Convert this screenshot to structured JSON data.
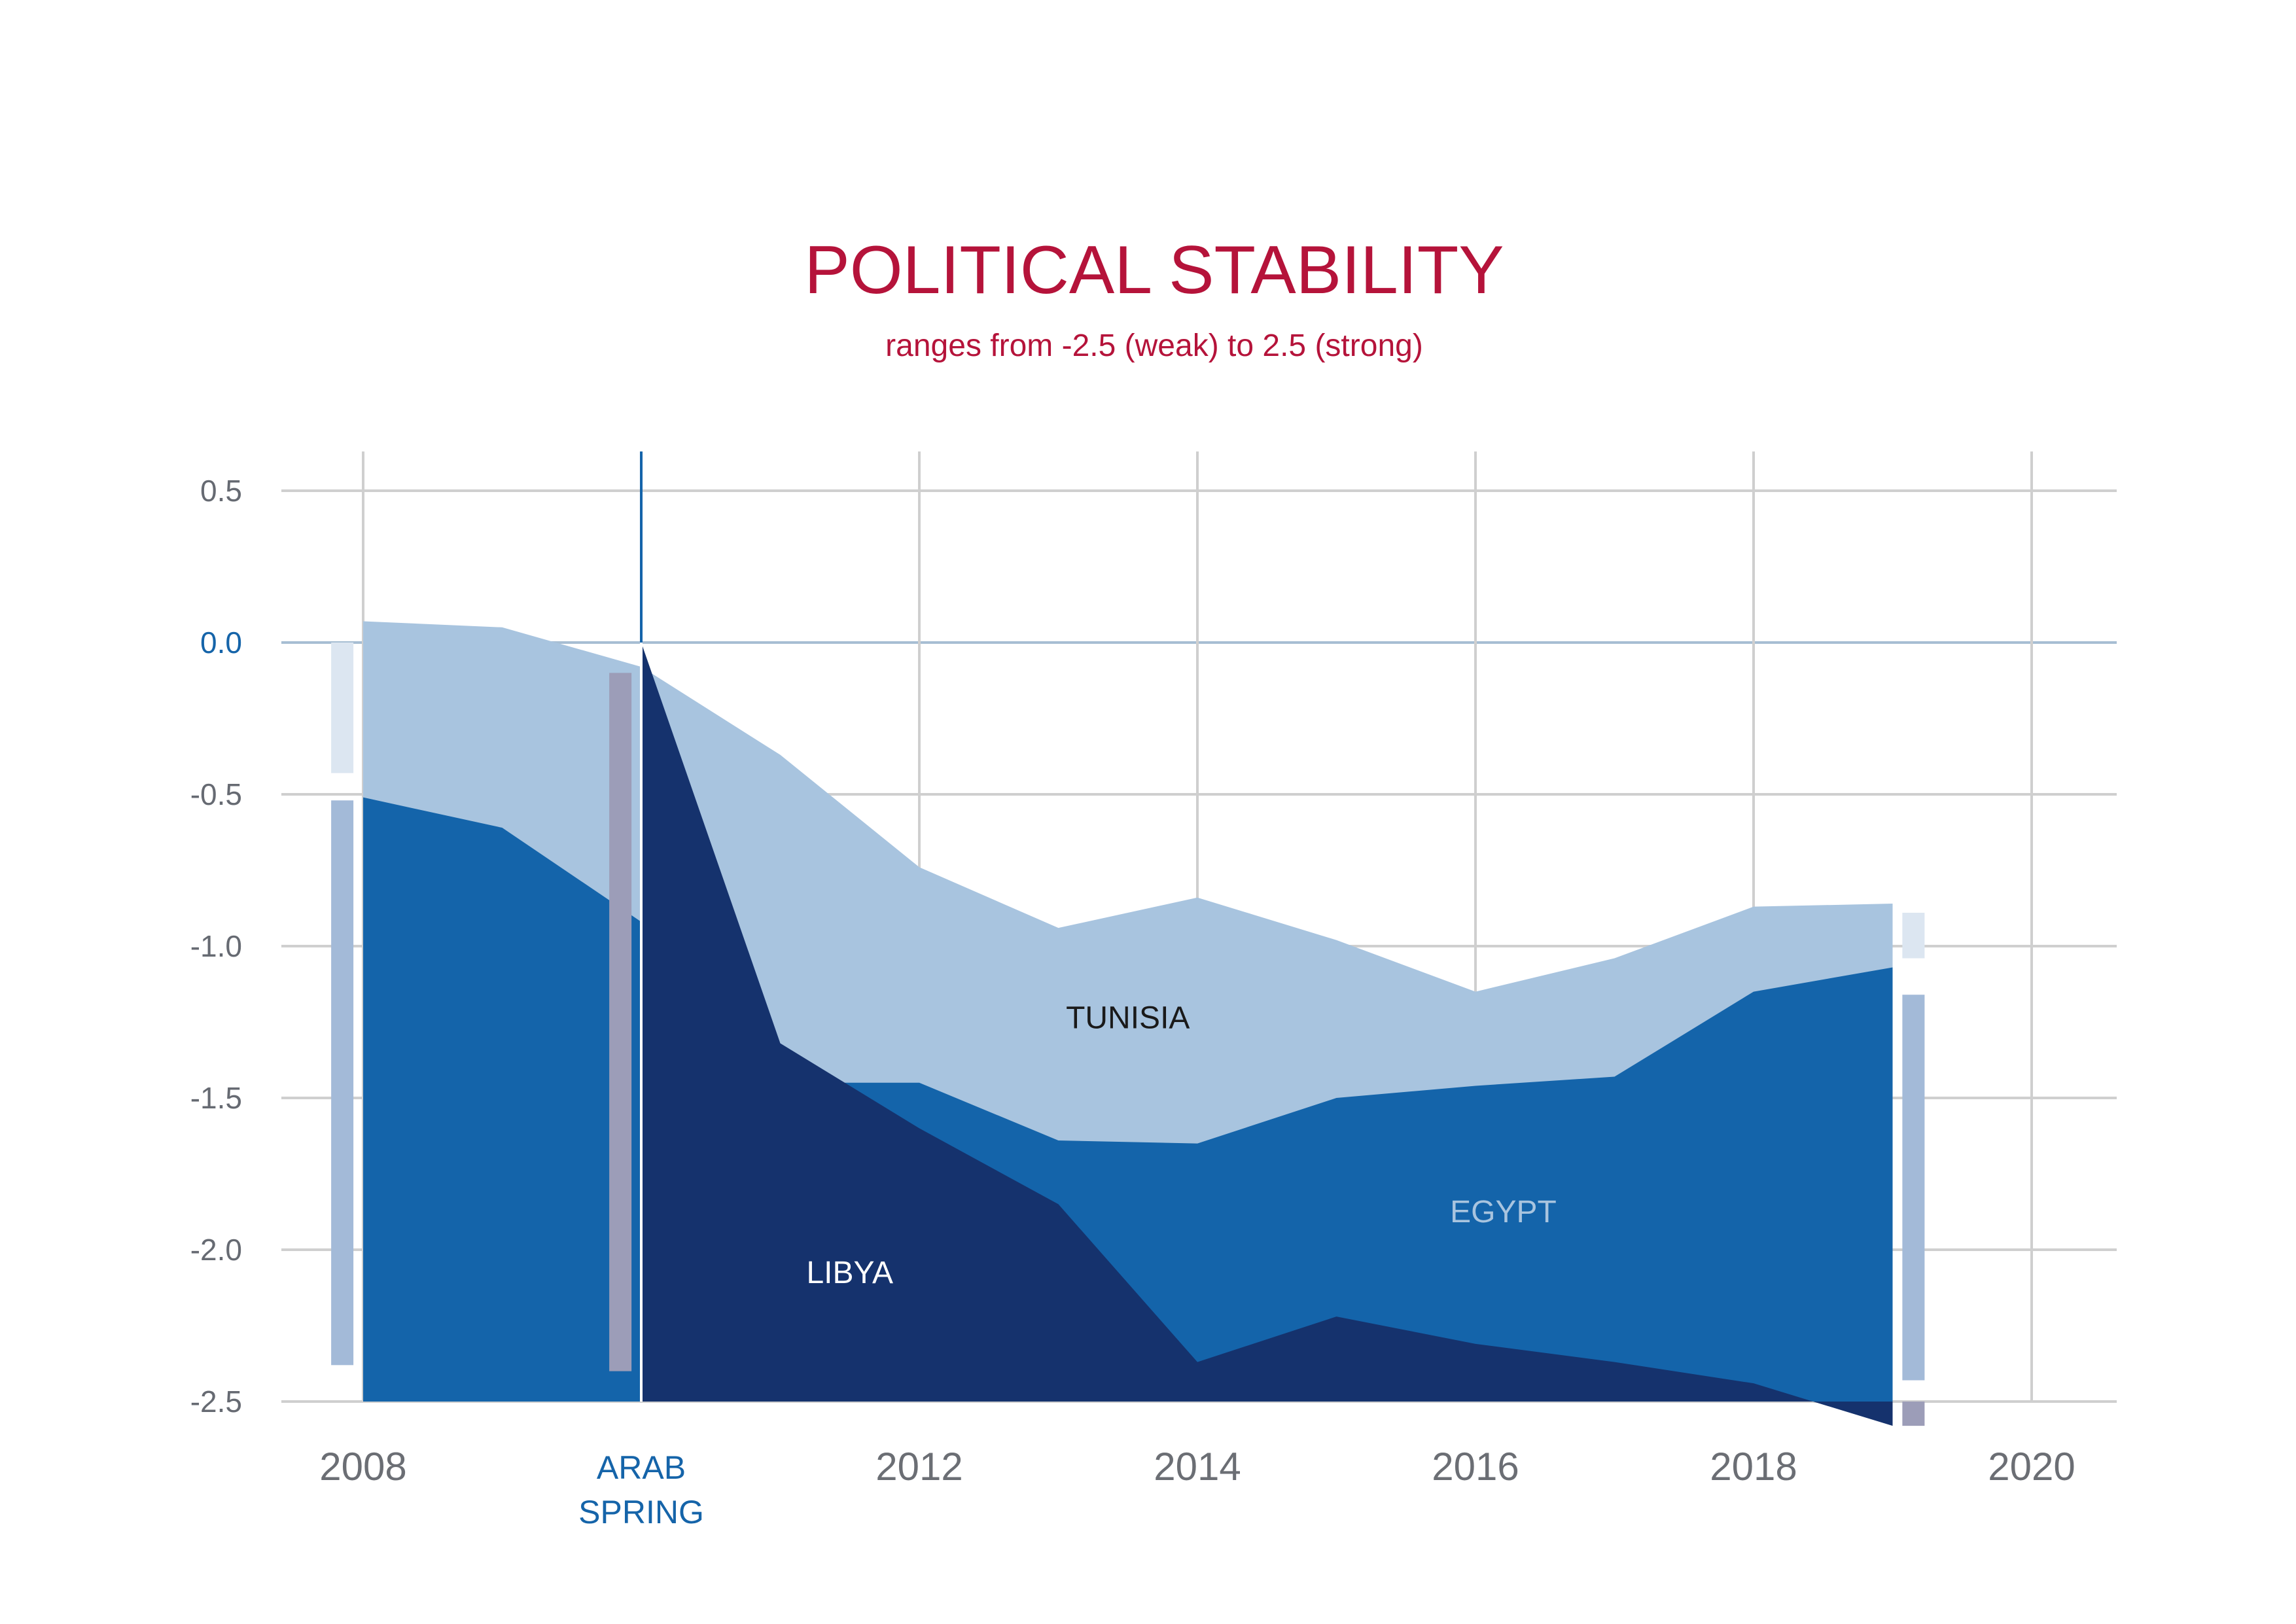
{
  "chart_data": {
    "type": "area",
    "title": "POLITICAL STABILITY",
    "subtitle": "ranges from -2.5 (weak) to 2.5 (strong)",
    "xlabel": "",
    "ylabel": "",
    "xlim": [
      2008,
      2020
    ],
    "ylim": [
      -2.5,
      0.5
    ],
    "y_ticks": [
      0.5,
      0.0,
      -0.5,
      -1.0,
      -1.5,
      -2.0,
      -2.5
    ],
    "y_tick_labels": [
      "0.5",
      "0.0",
      "-0.5",
      "-1.0",
      "-1.5",
      "-2.0",
      "-2.5"
    ],
    "x_ticks": [
      2008,
      2012,
      2014,
      2016,
      2018,
      2020
    ],
    "x_tick_labels": [
      "2008",
      "2012",
      "2014",
      "2016",
      "2018",
      "2020"
    ],
    "grid": true,
    "event": {
      "x": 2010,
      "label_lines": [
        "ARAB",
        "SPRING"
      ]
    },
    "series": [
      {
        "name": "TUNISIA",
        "color": "#a8c4df",
        "label_color": "#1a1a1a",
        "label_pos": {
          "x": 2013.5,
          "y": -1.27
        },
        "x": [
          2008,
          2009,
          2010,
          2011,
          2012,
          2013,
          2014,
          2015,
          2016,
          2017,
          2018,
          2019
        ],
        "values": [
          0.07,
          0.05,
          -0.08,
          -0.37,
          -0.74,
          -0.94,
          -0.84,
          -0.98,
          -1.15,
          -1.04,
          -0.87,
          -0.86
        ]
      },
      {
        "name": "EGYPT",
        "color": "#1464aa",
        "label_color": "#a8c4df",
        "label_pos": {
          "x": 2016.2,
          "y": -1.91
        },
        "x": [
          2008,
          2009,
          2010,
          2011,
          2012,
          2013,
          2014,
          2015,
          2016,
          2017,
          2018,
          2019
        ],
        "values": [
          -0.51,
          -0.61,
          -0.92,
          -1.45,
          -1.45,
          -1.64,
          -1.65,
          -1.5,
          -1.46,
          -1.43,
          -1.15,
          -1.07
        ]
      },
      {
        "name": "LIBYA",
        "color": "#15326d",
        "label_color": "#ffffff",
        "label_pos": {
          "x": 2011.5,
          "y": -2.11
        },
        "x": [
          2010,
          2011,
          2012,
          2013,
          2014,
          2015,
          2016,
          2017,
          2018,
          2019
        ],
        "values": [
          0.0,
          -1.32,
          -1.6,
          -1.85,
          -2.37,
          -2.22,
          -2.31,
          -2.37,
          -2.44,
          -2.58
        ]
      }
    ],
    "range_bars": [
      {
        "x": 2007.85,
        "from": 0.0,
        "to": -0.43,
        "color": "#dce6f1"
      },
      {
        "x": 2007.85,
        "from": -0.52,
        "to": -2.38,
        "color": "#a3bad8"
      },
      {
        "x": 2009.85,
        "from": -0.1,
        "to": -2.4,
        "color": "#9c9db8"
      },
      {
        "x": 2019.15,
        "from": -0.89,
        "to": -1.04,
        "color": "#dce6f1"
      },
      {
        "x": 2019.15,
        "from": -1.16,
        "to": -2.43,
        "color": "#a3bad8"
      },
      {
        "x": 2019.15,
        "from": -2.5,
        "to": -2.58,
        "color": "#9c9db8"
      }
    ]
  }
}
